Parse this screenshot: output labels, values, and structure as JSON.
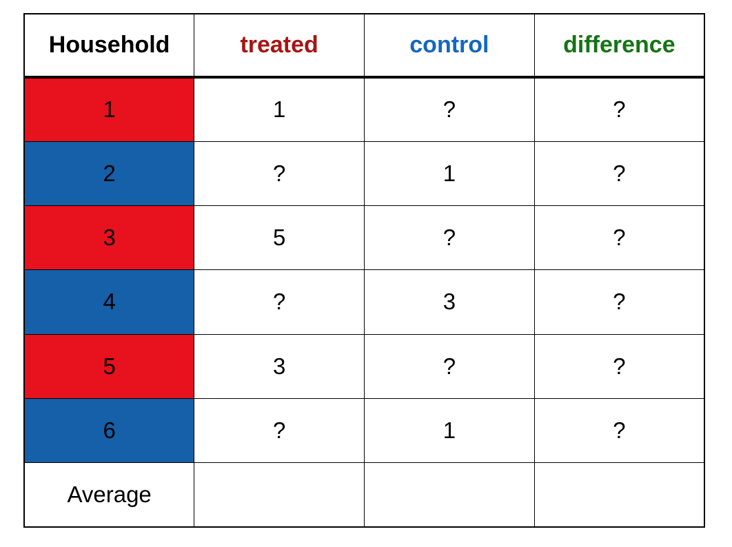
{
  "table": {
    "header": {
      "household": "Household",
      "treated": "treated",
      "control": "control",
      "difference": "difference"
    },
    "rows": [
      {
        "household": "1",
        "group": "treated",
        "row_color": "#e8111e",
        "treated": "1",
        "control": "?",
        "difference": "?"
      },
      {
        "household": "2",
        "group": "control",
        "row_color": "#1560a8",
        "treated": "?",
        "control": "1",
        "difference": "?"
      },
      {
        "household": "3",
        "group": "treated",
        "row_color": "#e8111e",
        "treated": "5",
        "control": "?",
        "difference": "?"
      },
      {
        "household": "4",
        "group": "control",
        "row_color": "#1560a8",
        "treated": "?",
        "control": "3",
        "difference": "?"
      },
      {
        "household": "5",
        "group": "treated",
        "row_color": "#e8111e",
        "treated": "3",
        "control": "?",
        "difference": "?"
      },
      {
        "household": "6",
        "group": "control",
        "row_color": "#1560a8",
        "treated": "?",
        "control": "1",
        "difference": "?"
      },
      {
        "household": "Average",
        "group": "summary",
        "row_color": "#ffffff",
        "treated": "",
        "control": "",
        "difference": ""
      }
    ]
  },
  "colors": {
    "header_household": "#000000",
    "header_treated": "#a91414",
    "header_control": "#1566c0",
    "header_difference": "#147414",
    "treated_row_bg": "#e8111e",
    "control_row_bg": "#1560a8",
    "border": "#000000",
    "background": "#ffffff"
  },
  "chart_data": {
    "type": "table",
    "columns": [
      "Household",
      "treated",
      "control",
      "difference"
    ],
    "rows": [
      [
        "1",
        "1",
        "?",
        "?"
      ],
      [
        "2",
        "?",
        "1",
        "?"
      ],
      [
        "3",
        "5",
        "?",
        "?"
      ],
      [
        "4",
        "?",
        "3",
        "?"
      ],
      [
        "5",
        "3",
        "?",
        "?"
      ],
      [
        "6",
        "?",
        "1",
        "?"
      ],
      [
        "Average",
        "",
        "",
        ""
      ]
    ],
    "row_groups": [
      "treated",
      "control",
      "treated",
      "control",
      "treated",
      "control",
      "summary"
    ],
    "notes_layout": "Household column cells for rows 1-6 are filled red (treated rows) or blue (control rows); header labels colored to match column meaning; Average row cells are empty"
  }
}
